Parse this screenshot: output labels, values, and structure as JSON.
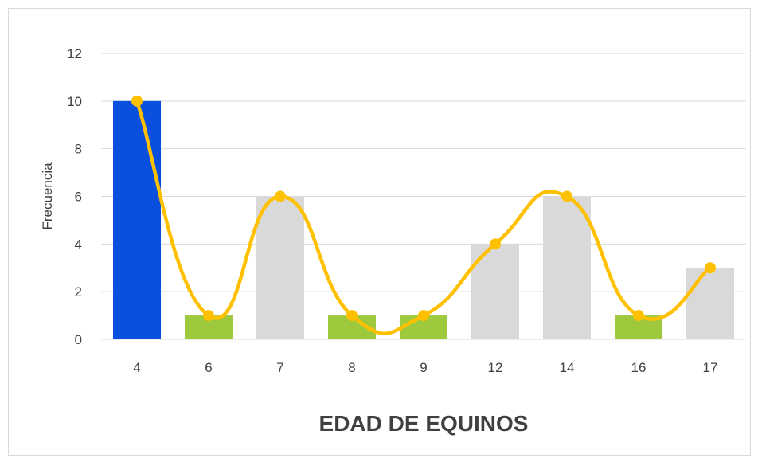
{
  "chart_data": {
    "type": "bar",
    "xlabel": "EDAD DE EQUINOS",
    "ylabel": "Frecuencia",
    "categories": [
      "4",
      "6",
      "7",
      "8",
      "9",
      "12",
      "14",
      "16",
      "17"
    ],
    "values": [
      10,
      1,
      6,
      1,
      1,
      4,
      6,
      1,
      3
    ],
    "bar_colors": [
      "#0a4fde",
      "#9fc93c",
      "#d9d9d9",
      "#9fc93c",
      "#9fc93c",
      "#d9d9d9",
      "#d9d9d9",
      "#9fc93c",
      "#d9d9d9"
    ],
    "overlay_line": {
      "type": "line",
      "smooth": true,
      "color": "#ffc000",
      "values": [
        10,
        1,
        6,
        1,
        1,
        4,
        6,
        1,
        3
      ]
    },
    "ylim": [
      0,
      12
    ],
    "yticks": [
      0,
      2,
      4,
      6,
      8,
      10,
      12
    ],
    "grid": true,
    "gridline_color": "#d9d9d9"
  }
}
